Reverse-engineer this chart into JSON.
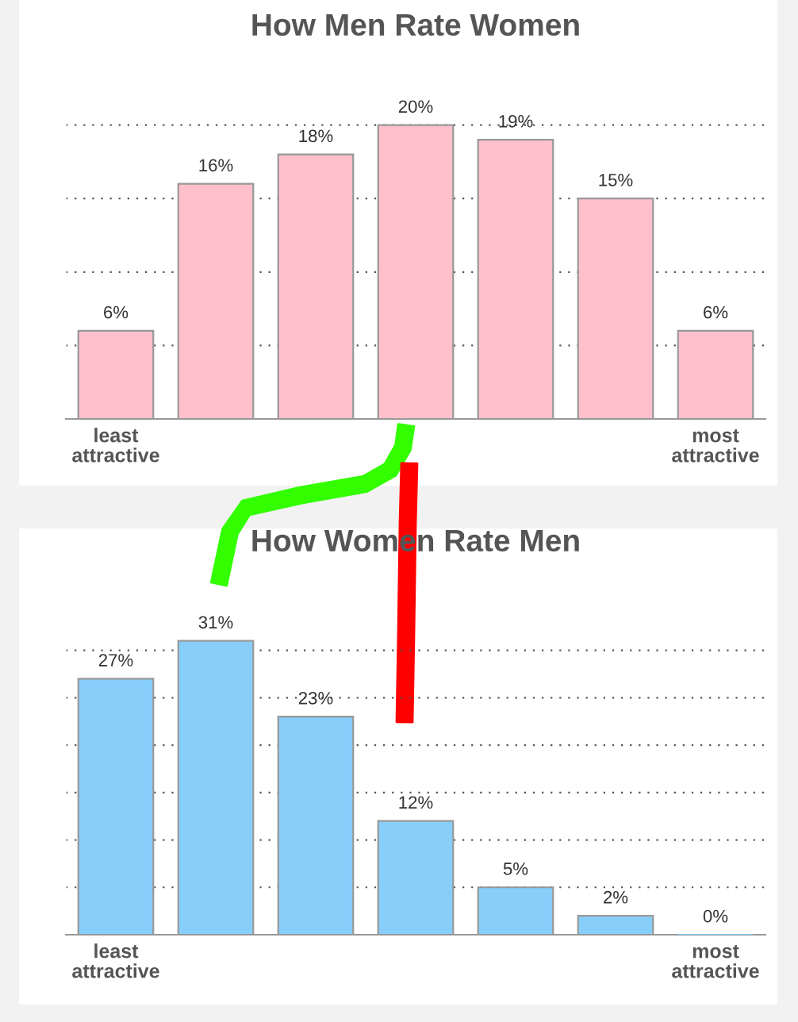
{
  "chart_data": [
    {
      "type": "bar",
      "title": "How Men Rate Women",
      "categories": [
        "least attractive",
        null,
        null,
        null,
        null,
        null,
        "most attractive"
      ],
      "series": [
        {
          "color": "#ffc0cb",
          "values": [
            6,
            16,
            18,
            20,
            19,
            15,
            6
          ],
          "value_labels": [
            "6%",
            "16%",
            "18%",
            "20%",
            "19%",
            "15%",
            "6%"
          ]
        }
      ],
      "grid": "y",
      "tick_labels": "x"
    },
    {
      "type": "bar",
      "title": "How Women Rate Men",
      "categories": [
        "least attractive",
        null,
        null,
        null,
        null,
        null,
        "most attractive"
      ],
      "series": [
        {
          "color": "#87cefa",
          "values": [
            27,
            31,
            23,
            12,
            5,
            2,
            0
          ],
          "value_labels": [
            "27%",
            "31%",
            "23%",
            "12%",
            "5%",
            "2%",
            "0%"
          ]
        }
      ],
      "grid": "y",
      "tick_labels": "x"
    }
  ]
}
